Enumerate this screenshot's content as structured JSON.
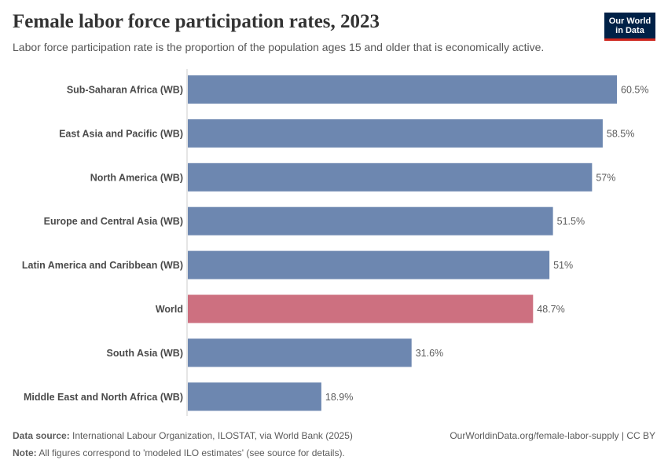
{
  "header": {
    "title": "Female labor force participation rates, 2023",
    "subtitle": "Labor force participation rate is the proportion of the population ages 15 and older that is economically active."
  },
  "logo": {
    "line1": "Our World",
    "line2": "in Data"
  },
  "footer": {
    "source_label": "Data source:",
    "source_text": "International Labour Organization, ILOSTAT, via World Bank (2025)",
    "note_label": "Note:",
    "note_text": "All figures correspond to 'modeled ILO estimates' (see source for details).",
    "url_license": "OurWorldinData.org/female-labor-supply | CC BY"
  },
  "colors": {
    "bar": "#6d87b0",
    "highlight": "#cd7080",
    "logo_bg": "#002147",
    "logo_accent": "#ce261e"
  },
  "chart_data": {
    "type": "bar",
    "orientation": "horizontal",
    "categories": [
      "Sub-Saharan Africa (WB)",
      "East Asia and Pacific (WB)",
      "North America (WB)",
      "Europe and Central Asia (WB)",
      "Latin America and Caribbean (WB)",
      "World",
      "South Asia (WB)",
      "Middle East and North Africa (WB)"
    ],
    "values": [
      60.5,
      58.5,
      57,
      51.5,
      51,
      48.7,
      31.6,
      18.9
    ],
    "value_labels": [
      "60.5%",
      "58.5%",
      "57%",
      "51.5%",
      "51%",
      "48.7%",
      "31.6%",
      "18.9%"
    ],
    "highlight_category": "World",
    "xlim": [
      0,
      60.5
    ],
    "unit": "%"
  }
}
